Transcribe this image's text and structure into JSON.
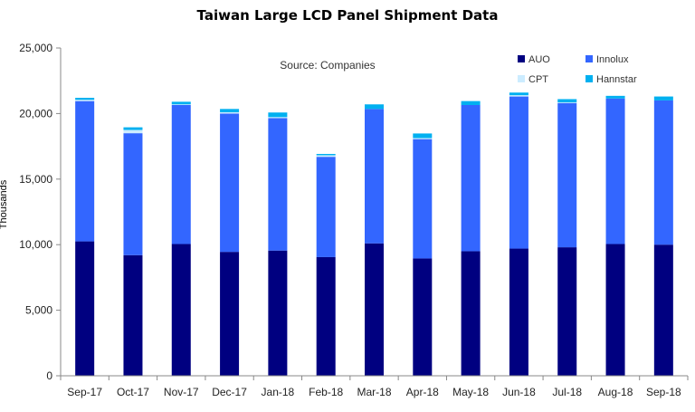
{
  "chart_data": {
    "type": "bar",
    "stacked": true,
    "title": "Taiwan Large LCD Panel Shipment Data",
    "annotation": "Source: Companies",
    "xlabel": "",
    "ylabel": "Thousands",
    "ylim": [
      0,
      25000
    ],
    "yticks": [
      "0",
      "5,000",
      "10,000",
      "15,000",
      "20,000",
      "25,000"
    ],
    "ytick_values": [
      0,
      5000,
      10000,
      15000,
      20000,
      25000
    ],
    "categories": [
      "Sep-17",
      "Oct-17",
      "Nov-17",
      "Dec-17",
      "Jan-18",
      "Feb-18",
      "Mar-18",
      "Apr-18",
      "May-18",
      "Jun-18",
      "Jul-18",
      "Aug-18",
      "Sep-18"
    ],
    "series": [
      {
        "name": "AUO",
        "color": "#000080",
        "values": [
          10250,
          9200,
          10050,
          9450,
          9550,
          9050,
          10100,
          8950,
          9500,
          9700,
          9800,
          10050,
          10000
        ]
      },
      {
        "name": "Innolux",
        "color": "#3366FF",
        "values": [
          10700,
          9300,
          10600,
          10550,
          10100,
          7650,
          10250,
          9100,
          11150,
          11600,
          11000,
          11100,
          11000
        ]
      },
      {
        "name": "CPT",
        "color": "#CCECFF",
        "values": [
          100,
          250,
          50,
          100,
          80,
          120,
          0,
          80,
          0,
          100,
          50,
          0,
          0
        ]
      },
      {
        "name": "Hannstar",
        "color": "#00B0F0",
        "values": [
          150,
          200,
          200,
          250,
          350,
          100,
          350,
          350,
          300,
          200,
          250,
          200,
          300
        ]
      }
    ],
    "grid": false,
    "legend_position": "top-right"
  }
}
